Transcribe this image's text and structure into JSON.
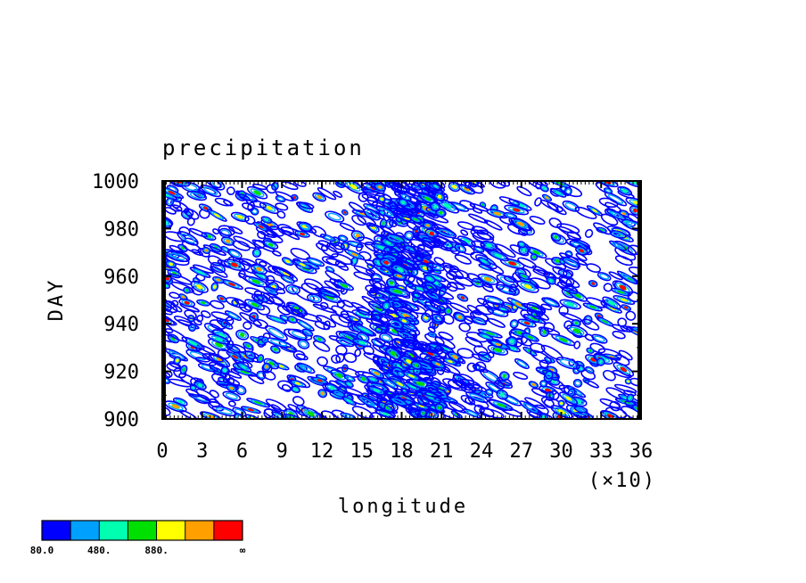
{
  "chart_data": {
    "type": "heatmap",
    "title": "precipitation",
    "xlabel": "longitude",
    "ylabel": "DAY",
    "x_tick_labels": [
      "0",
      "3",
      "6",
      "9",
      "12",
      "15",
      "18",
      "21",
      "24",
      "27",
      "30",
      "33",
      "36"
    ],
    "x_multiplier_label": "(×10)",
    "y_tick_labels": [
      "900",
      "920",
      "940",
      "960",
      "980",
      "1000"
    ],
    "xlim": [
      0,
      360
    ],
    "ylim": [
      900,
      1000
    ],
    "colorbar": {
      "colors": [
        "#0000ff",
        "#00a0ff",
        "#00ffb0",
        "#00e000",
        "#ffff00",
        "#ffa000",
        "#ff0000"
      ],
      "tick_labels": [
        "80.0",
        "480.",
        "880.",
        "∞"
      ]
    }
  }
}
